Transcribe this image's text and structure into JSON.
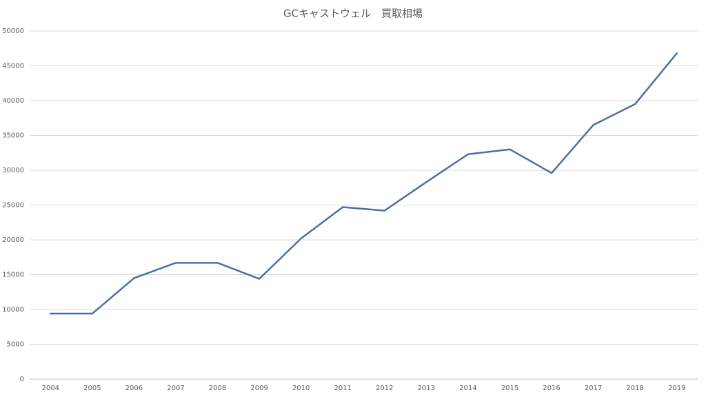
{
  "chart_data": {
    "type": "line",
    "title": "GCキャストウェル　買取相場",
    "categories": [
      "2004",
      "2005",
      "2006",
      "2007",
      "2008",
      "2009",
      "2010",
      "2011",
      "2012",
      "2013",
      "2014",
      "2015",
      "2016",
      "2017",
      "2018",
      "2019"
    ],
    "series": [
      {
        "name": "買取相場",
        "color": "#4a6fa5",
        "values": [
          9400,
          9400,
          14500,
          16700,
          16700,
          14400,
          20200,
          24700,
          24200,
          28300,
          32300,
          33000,
          29600,
          36500,
          39500,
          46800
        ]
      }
    ],
    "ylim": [
      0,
      50000
    ],
    "yticks": [
      0,
      5000,
      10000,
      15000,
      20000,
      25000,
      30000,
      35000,
      40000,
      45000,
      50000
    ],
    "grid": true
  }
}
